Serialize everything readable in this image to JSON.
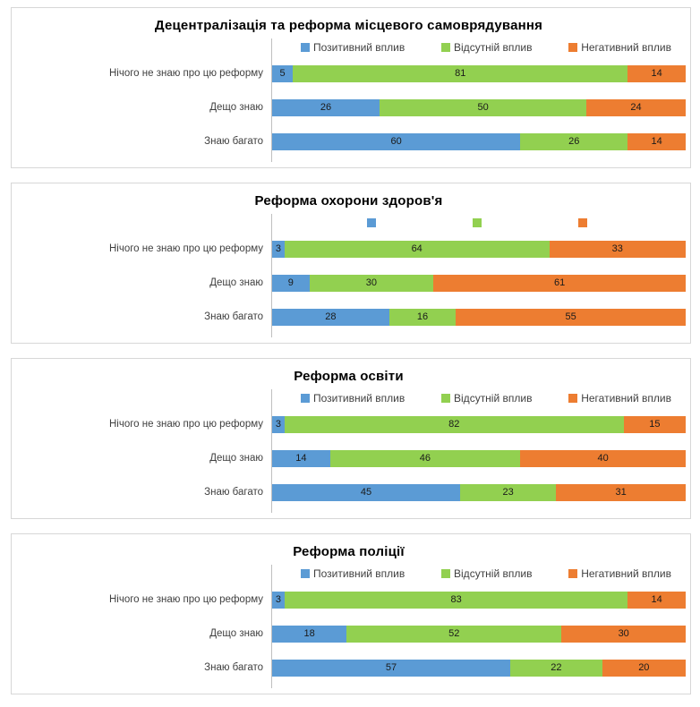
{
  "colors": {
    "positive": "#5B9BD5",
    "no_impact": "#92D050",
    "negative": "#ED7D31",
    "panel_border": "#D7D7D7",
    "axis_line": "#BFBFBF",
    "label_text": "#3F3F3F",
    "value_text": "#1A1A1A",
    "title_text": "#000000"
  },
  "categories": [
    "Нічого не знаю про цю реформу",
    "Дещо знаю",
    "Знаю багато"
  ],
  "series_names": [
    "Позитивний вплив",
    "Відсутній вплив",
    "Негативний вплив"
  ],
  "charts": [
    {
      "title": "Децентралізація та реформа місцевого самоврядування",
      "legend": [
        "Позитивний вплив",
        "Відсутній вплив",
        "Негативний вплив"
      ],
      "rows": [
        [
          5,
          81,
          14
        ],
        [
          26,
          50,
          24
        ],
        [
          60,
          26,
          14
        ]
      ]
    },
    {
      "title": "Реформа охорони здоров'я",
      "legend": [
        "",
        "",
        ""
      ],
      "rows": [
        [
          3,
          64,
          33
        ],
        [
          9,
          30,
          61
        ],
        [
          28,
          16,
          55
        ]
      ]
    },
    {
      "title": "Реформа освіти",
      "legend": [
        "Позитивний вплив",
        "Відсутній вплив",
        "Негативний вплив"
      ],
      "rows": [
        [
          3,
          82,
          15
        ],
        [
          14,
          46,
          40
        ],
        [
          45,
          23,
          31
        ]
      ]
    },
    {
      "title": "Реформа поліції",
      "legend": [
        "Позитивний вплив",
        "Відсутній вплив",
        "Негативний вплив"
      ],
      "rows": [
        [
          3,
          83,
          14
        ],
        [
          18,
          52,
          30
        ],
        [
          57,
          22,
          20
        ]
      ]
    }
  ],
  "chart_data": [
    {
      "type": "bar",
      "orientation": "horizontal",
      "stacked": true,
      "normalized_percent": true,
      "title": "Децентралізація та реформа місцевого самоврядування",
      "categories": [
        "Нічого не знаю про цю реформу",
        "Дещо знаю",
        "Знаю багато"
      ],
      "series": [
        {
          "name": "Позитивний вплив",
          "color": "#5B9BD5",
          "values": [
            5,
            26,
            60
          ]
        },
        {
          "name": "Відсутній вплив",
          "color": "#92D050",
          "values": [
            81,
            50,
            26
          ]
        },
        {
          "name": "Негативний вплив",
          "color": "#ED7D31",
          "values": [
            14,
            24,
            14
          ]
        }
      ],
      "xlim": [
        0,
        100
      ],
      "grid": false,
      "legend_position": "top",
      "legend_text_visible": true,
      "data_labels": "inside-center"
    },
    {
      "type": "bar",
      "orientation": "horizontal",
      "stacked": true,
      "normalized_percent": true,
      "title": "Реформа охорони здоров'я",
      "categories": [
        "Нічого не знаю про цю реформу",
        "Дещо знаю",
        "Знаю багато"
      ],
      "series": [
        {
          "name": "Позитивний вплив",
          "color": "#5B9BD5",
          "values": [
            3,
            9,
            28
          ]
        },
        {
          "name": "Відсутній вплив",
          "color": "#92D050",
          "values": [
            64,
            30,
            16
          ]
        },
        {
          "name": "Негативний вплив",
          "color": "#ED7D31",
          "values": [
            33,
            61,
            55
          ]
        }
      ],
      "xlim": [
        0,
        100
      ],
      "grid": false,
      "legend_position": "top",
      "legend_text_visible": false,
      "data_labels": "inside-center"
    },
    {
      "type": "bar",
      "orientation": "horizontal",
      "stacked": true,
      "normalized_percent": true,
      "title": "Реформа освіти",
      "categories": [
        "Нічого не знаю про цю реформу",
        "Дещо знаю",
        "Знаю багато"
      ],
      "series": [
        {
          "name": "Позитивний вплив",
          "color": "#5B9BD5",
          "values": [
            3,
            14,
            45
          ]
        },
        {
          "name": "Відсутній вплив",
          "color": "#92D050",
          "values": [
            82,
            46,
            23
          ]
        },
        {
          "name": "Негативний вплив",
          "color": "#ED7D31",
          "values": [
            15,
            40,
            31
          ]
        }
      ],
      "xlim": [
        0,
        100
      ],
      "grid": false,
      "legend_position": "top",
      "legend_text_visible": true,
      "data_labels": "inside-center"
    },
    {
      "type": "bar",
      "orientation": "horizontal",
      "stacked": true,
      "normalized_percent": true,
      "title": "Реформа поліції",
      "categories": [
        "Нічого не знаю про цю реформу",
        "Дещо знаю",
        "Знаю багато"
      ],
      "series": [
        {
          "name": "Позитивний вплив",
          "color": "#5B9BD5",
          "values": [
            3,
            18,
            57
          ]
        },
        {
          "name": "Відсутній вплив",
          "color": "#92D050",
          "values": [
            83,
            52,
            22
          ]
        },
        {
          "name": "Негативний вплив",
          "color": "#ED7D31",
          "values": [
            14,
            30,
            20
          ]
        }
      ],
      "xlim": [
        0,
        100
      ],
      "grid": false,
      "legend_position": "top",
      "legend_text_visible": true,
      "data_labels": "inside-center"
    }
  ]
}
